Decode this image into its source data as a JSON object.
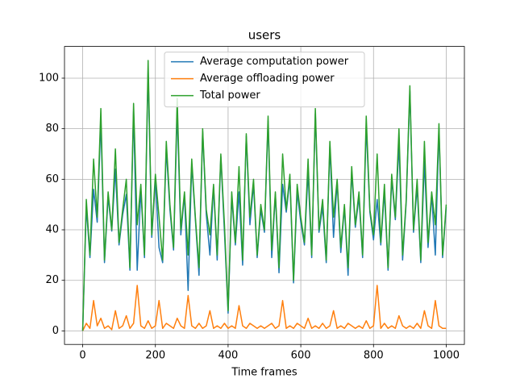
{
  "chart_data": {
    "type": "line",
    "title": "users",
    "xlabel": "Time frames",
    "x": [
      0,
      10,
      20,
      30,
      40,
      50,
      60,
      70,
      80,
      90,
      100,
      110,
      120,
      130,
      140,
      150,
      160,
      170,
      180,
      190,
      200,
      210,
      220,
      230,
      240,
      250,
      260,
      270,
      280,
      290,
      300,
      310,
      320,
      330,
      340,
      350,
      360,
      370,
      380,
      390,
      400,
      410,
      420,
      430,
      440,
      450,
      460,
      470,
      480,
      490,
      500,
      510,
      520,
      530,
      540,
      550,
      560,
      570,
      580,
      590,
      600,
      610,
      620,
      630,
      640,
      650,
      660,
      670,
      680,
      690,
      700,
      710,
      720,
      730,
      740,
      750,
      760,
      770,
      780,
      790,
      800,
      810,
      820,
      830,
      840,
      850,
      860,
      870,
      880,
      890,
      900,
      910,
      920,
      930,
      940,
      950,
      960,
      970,
      980,
      990,
      1000
    ],
    "series": [
      {
        "name": "Average computation power",
        "color": "#1f77b4",
        "values": [
          0,
          49,
          29,
          56,
          43,
          83,
          27,
          53,
          39.5,
          64,
          34,
          46,
          54,
          24,
          87,
          24,
          56,
          29,
          103,
          37,
          60,
          33,
          27,
          72,
          48,
          32,
          87,
          38,
          54,
          16,
          66,
          44,
          22,
          79,
          46,
          30,
          57,
          28,
          69,
          39,
          7,
          53,
          34,
          55,
          26,
          77,
          42,
          58,
          29,
          48,
          39,
          83,
          29,
          54,
          23,
          58,
          47,
          60,
          19,
          55,
          43,
          34,
          63,
          29,
          86,
          39,
          49,
          27,
          73,
          37,
          59,
          31,
          49,
          22,
          63,
          41,
          53,
          29,
          81,
          47,
          36,
          52,
          34,
          55,
          24,
          60,
          44,
          74,
          28,
          51,
          95,
          39,
          57,
          27,
          67,
          33,
          54,
          30,
          80,
          29,
          49
        ]
      },
      {
        "name": "Average offloading power",
        "color": "#ff7f0e",
        "values": [
          0,
          3,
          1,
          12,
          2,
          5,
          1,
          2,
          0.5,
          8,
          1,
          2,
          6,
          1,
          3,
          18,
          2,
          1,
          4,
          1,
          2,
          12,
          1,
          3,
          2,
          1,
          5,
          2,
          1,
          14,
          2,
          1,
          3,
          1,
          2,
          8,
          1,
          2,
          1,
          3,
          1,
          2,
          1,
          10,
          2,
          1,
          3,
          2,
          1,
          2,
          1,
          2,
          3,
          1,
          2,
          12,
          1,
          2,
          1,
          3,
          2,
          1,
          5,
          1,
          2,
          1,
          3,
          1,
          2,
          8,
          1,
          2,
          1,
          3,
          2,
          1,
          2,
          1,
          4,
          1,
          2,
          18,
          1,
          3,
          1,
          2,
          1,
          6,
          2,
          1,
          2,
          1,
          3,
          1,
          8,
          2,
          1,
          12,
          2,
          1,
          1
        ]
      },
      {
        "name": "Total power",
        "color": "#2ca02c",
        "values": [
          0,
          52,
          30,
          68,
          45,
          88,
          28,
          55,
          40,
          72,
          35,
          48,
          60,
          25,
          90,
          42,
          58,
          30,
          107,
          38,
          62,
          45,
          28,
          75,
          50,
          33,
          92,
          40,
          55,
          30,
          68,
          45,
          25,
          80,
          48,
          38,
          58,
          30,
          70,
          42,
          8,
          55,
          35,
          65,
          28,
          78,
          45,
          60,
          30,
          50,
          40,
          85,
          32,
          55,
          25,
          70,
          48,
          62,
          20,
          58,
          45,
          35,
          68,
          30,
          88,
          40,
          52,
          28,
          75,
          45,
          60,
          33,
          50,
          25,
          65,
          42,
          55,
          30,
          85,
          48,
          38,
          70,
          35,
          58,
          25,
          62,
          45,
          80,
          30,
          52,
          97,
          40,
          60,
          28,
          75,
          35,
          55,
          42,
          82,
          30,
          50
        ]
      }
    ],
    "xlim": [
      -50,
      1050
    ],
    "ylim": [
      -5.36,
      112.56
    ],
    "xticks": [
      0,
      200,
      400,
      600,
      800,
      1000
    ],
    "yticks": [
      0,
      20,
      40,
      60,
      80,
      100
    ],
    "grid": true,
    "legend": "upper center"
  }
}
